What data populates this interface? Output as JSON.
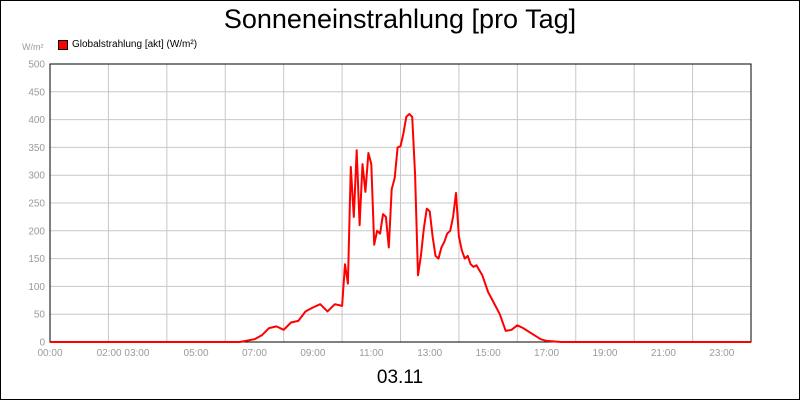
{
  "chart_data": {
    "type": "line",
    "title": "Sonneneinstrahlung [pro Tag]",
    "unit_label": "W/m²",
    "date_label": "03.11",
    "xlim": [
      0,
      24
    ],
    "ylim": [
      0,
      500
    ],
    "y_ticks": [
      0,
      50,
      100,
      150,
      200,
      250,
      300,
      350,
      400,
      450,
      500
    ],
    "x_tick_labels": [
      "00:00",
      "02:00 03:00",
      "05:00",
      "07:00",
      "09:00",
      "11:00",
      "13:00",
      "15:00",
      "17:00",
      "19:00",
      "21:00",
      "23:00"
    ],
    "grid": true,
    "legend_position": "top-left",
    "series": [
      {
        "name": "Globalstrahlung [akt] (W/m²)",
        "color": "#ff0000",
        "x": [
          0,
          6.5,
          7.0,
          7.25,
          7.5,
          7.75,
          8.0,
          8.25,
          8.5,
          8.75,
          9.0,
          9.25,
          9.5,
          9.75,
          10.0,
          10.1,
          10.2,
          10.3,
          10.4,
          10.5,
          10.6,
          10.7,
          10.8,
          10.9,
          11.0,
          11.1,
          11.2,
          11.3,
          11.4,
          11.5,
          11.6,
          11.7,
          11.8,
          11.9,
          12.0,
          12.1,
          12.2,
          12.3,
          12.4,
          12.5,
          12.6,
          12.7,
          12.8,
          12.9,
          13.0,
          13.1,
          13.2,
          13.3,
          13.4,
          13.5,
          13.6,
          13.7,
          13.8,
          13.9,
          14.0,
          14.1,
          14.2,
          14.3,
          14.4,
          14.5,
          14.6,
          14.8,
          15.0,
          15.2,
          15.4,
          15.6,
          15.8,
          16.0,
          16.2,
          16.5,
          16.8,
          17.0,
          17.5,
          24
        ],
        "y": [
          0,
          0,
          5,
          12,
          25,
          28,
          22,
          35,
          38,
          55,
          62,
          68,
          55,
          68,
          65,
          140,
          105,
          315,
          225,
          345,
          210,
          320,
          270,
          340,
          320,
          175,
          200,
          195,
          230,
          225,
          170,
          275,
          295,
          350,
          352,
          375,
          405,
          410,
          405,
          300,
          120,
          155,
          205,
          240,
          235,
          190,
          155,
          150,
          170,
          180,
          195,
          200,
          225,
          268,
          190,
          165,
          150,
          155,
          140,
          135,
          138,
          120,
          90,
          70,
          50,
          20,
          22,
          30,
          25,
          15,
          5,
          2,
          0,
          0
        ]
      }
    ]
  }
}
